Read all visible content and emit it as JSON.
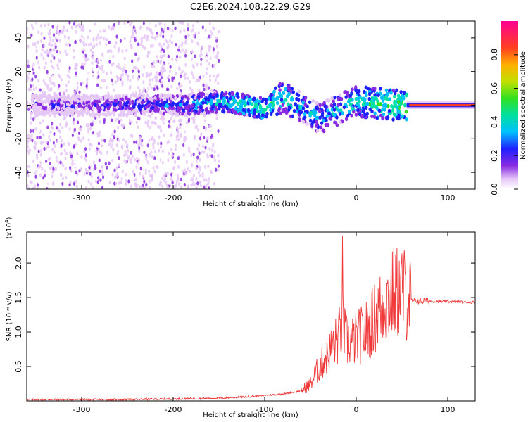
{
  "title": "C2E6.2024.108.22.29.G29",
  "spectrogram": {
    "xlabel": "Height of straight line (km)",
    "ylabel": "Frequency (Hz)",
    "xlim": [
      -360,
      130
    ],
    "ylim": [
      -50,
      50
    ],
    "xticks": [
      -300,
      -200,
      -100,
      0,
      100
    ],
    "yticks": [
      40,
      20,
      0,
      -20,
      -40
    ],
    "colorbar": {
      "label": "Normalized spectral amplitude",
      "range": [
        0.0,
        1.0
      ],
      "ticks": [
        0.0,
        0.2,
        0.4,
        0.6,
        0.8
      ]
    }
  },
  "chart_data": [
    {
      "type": "heatmap",
      "title": "C2E6.2024.108.22.29.G29",
      "xlabel": "Height of straight line (km)",
      "ylabel": "Frequency (Hz)",
      "xlim": [
        -360,
        130
      ],
      "ylim": [
        -50,
        50
      ],
      "colorbar_label": "Normalized spectral amplitude",
      "description_points": [
        {
          "x": -330,
          "freq": 0,
          "amp": 0.2
        },
        {
          "x": -200,
          "freq": 0,
          "amp": 0.3
        },
        {
          "x": -140,
          "freq": 2,
          "amp": 0.45
        },
        {
          "x": -100,
          "freq": -2,
          "amp": 0.5
        },
        {
          "x": -80,
          "freq": 5,
          "amp": 0.45
        },
        {
          "x": -40,
          "freq": -8,
          "amp": 0.35
        },
        {
          "x": 0,
          "freq": 2,
          "amp": 0.45
        },
        {
          "x": 50,
          "freq": 0,
          "amp": 0.55
        },
        {
          "x": 100,
          "freq": 0,
          "amp": 0.9
        }
      ]
    },
    {
      "type": "line",
      "xlabel": "Height of straight line (km)",
      "ylabel": "SNR (10 * v/v)",
      "ylabel_multiplier": "(x10^4)",
      "xlim": [
        -360,
        130
      ],
      "ylim": [
        0,
        2.45
      ],
      "xticks": [
        -300,
        -200,
        -100,
        0,
        100
      ],
      "yticks": [
        0.5,
        1.0,
        1.5,
        2.0
      ],
      "series": [
        {
          "color": "#f03a3a",
          "x": [
            -360,
            -300,
            -250,
            -200,
            -150,
            -120,
            -100,
            -80,
            -60,
            -50,
            -40,
            -30,
            -20,
            -15,
            -10,
            0,
            10,
            20,
            30,
            40,
            50,
            60,
            70,
            80,
            100,
            130
          ],
          "y": [
            0.02,
            0.02,
            0.02,
            0.03,
            0.04,
            0.06,
            0.08,
            0.1,
            0.15,
            0.25,
            0.5,
            0.7,
            0.9,
            1.1,
            0.85,
            0.9,
            1.0,
            1.2,
            1.4,
            1.55,
            1.6,
            1.45,
            1.45,
            1.45,
            1.44,
            1.43
          ]
        }
      ]
    }
  ]
}
